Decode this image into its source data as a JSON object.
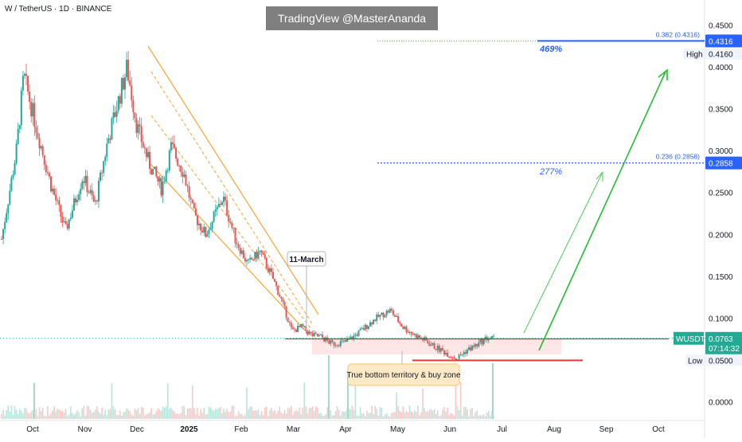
{
  "header": {
    "symbol_title": "W / TetherUS · 1D · BINANCE",
    "watermark": "TradingView @MasterAnanda"
  },
  "chart_data": {
    "type": "candlestick",
    "symbol": "W / TetherUS",
    "interval": "1D",
    "exchange": "BINANCE",
    "x_ticks": [
      "Oct",
      "Nov",
      "Dec",
      "2025",
      "Feb",
      "Mar",
      "Apr",
      "May",
      "Jun",
      "Jul",
      "Aug",
      "Sep",
      "Oct"
    ],
    "y_ticks": [
      "0.4500",
      "0.4000",
      "0.3500",
      "0.3000",
      "0.2500",
      "0.2000",
      "0.1500",
      "0.1000",
      "0.0500",
      "0.0000"
    ],
    "ylim": [
      0.0,
      0.45
    ],
    "current": {
      "ticker": "WUSDT",
      "price": "0.0763",
      "countdown": "07:14:32",
      "color": "#22ab94"
    },
    "high": {
      "label": "High",
      "price": "0.4160"
    },
    "low": {
      "label": "Low",
      "price": "0.0500"
    },
    "fib_levels": [
      {
        "label": "0.382 (0.4316)",
        "price": 0.4316,
        "price_label": "0.4316",
        "color": "#2962ff"
      },
      {
        "label": "0.236 (0.2858)",
        "price": 0.2858,
        "price_label": "0.2858",
        "color": "#2962ff"
      }
    ],
    "targets": [
      {
        "label": "469%",
        "color": "#2962ff"
      },
      {
        "label": "277%",
        "color": "#2962ff"
      }
    ],
    "annotations": [
      {
        "text": "11-March"
      },
      {
        "text": "True bottom territory & buy zone"
      }
    ],
    "colors": {
      "up": "#26a69a",
      "down": "#ef5350",
      "channel": "#f7a534",
      "target_arrow": "#1fbf2f",
      "support": "#e53935"
    },
    "price_path": [
      [
        0.0,
        0.195
      ],
      [
        0.03,
        0.3
      ],
      [
        0.045,
        0.39
      ],
      [
        0.07,
        0.33
      ],
      [
        0.1,
        0.26
      ],
      [
        0.13,
        0.205
      ],
      [
        0.165,
        0.27
      ],
      [
        0.19,
        0.235
      ],
      [
        0.215,
        0.31
      ],
      [
        0.255,
        0.4
      ],
      [
        0.275,
        0.33
      ],
      [
        0.3,
        0.285
      ],
      [
        0.325,
        0.255
      ],
      [
        0.345,
        0.305
      ],
      [
        0.37,
        0.275
      ],
      [
        0.39,
        0.225
      ],
      [
        0.415,
        0.2
      ],
      [
        0.45,
        0.245
      ],
      [
        0.475,
        0.195
      ],
      [
        0.5,
        0.165
      ],
      [
        0.525,
        0.18
      ],
      [
        0.55,
        0.15
      ],
      [
        0.57,
        0.12
      ],
      [
        0.59,
        0.085
      ],
      [
        0.61,
        0.09
      ],
      [
        0.63,
        0.08
      ],
      [
        0.65,
        0.078
      ],
      [
        0.67,
        0.07
      ],
      [
        0.7,
        0.072
      ],
      [
        0.73,
        0.085
      ],
      [
        0.76,
        0.1
      ],
      [
        0.79,
        0.11
      ],
      [
        0.815,
        0.09
      ],
      [
        0.84,
        0.08
      ],
      [
        0.86,
        0.074
      ],
      [
        0.88,
        0.066
      ],
      [
        0.9,
        0.06
      ],
      [
        0.925,
        0.052
      ],
      [
        0.945,
        0.062
      ],
      [
        0.965,
        0.068
      ],
      [
        0.985,
        0.0763
      ]
    ]
  }
}
